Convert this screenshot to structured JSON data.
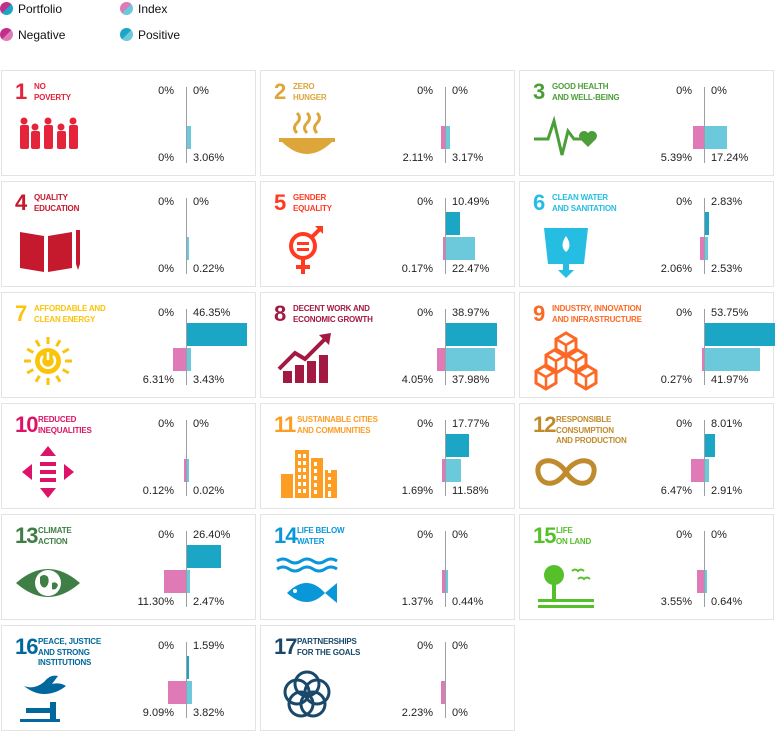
{
  "legend": {
    "portfolio": "Portfolio",
    "index": "Index",
    "negative": "Negative",
    "positive": "Positive"
  },
  "colors": {
    "positive_portfolio": "#1aa6c4",
    "positive_index": "#6cc9db",
    "negative_portfolio": "#c0308b",
    "negative_index": "#e07ab6"
  },
  "cards": [
    {
      "num": "1",
      "title": "NO POVERTY",
      "lines": [
        "NO",
        "POVERTY"
      ],
      "color": "#e5243b",
      "icon": "family-icon",
      "pos_top": "0%",
      "pos_bottom": "3.06%",
      "neg_top": "0%",
      "neg_bottom": "0%"
    },
    {
      "num": "2",
      "title": "ZERO HUNGER",
      "lines": [
        "ZERO",
        "HUNGER"
      ],
      "color": "#dda63a",
      "icon": "bowl-icon",
      "pos_top": "0%",
      "pos_bottom": "3.17%",
      "neg_top": "0%",
      "neg_bottom": "2.11%"
    },
    {
      "num": "3",
      "title": "GOOD HEALTH AND WELL-BEING",
      "lines": [
        "GOOD HEALTH",
        "AND WELL-BEING"
      ],
      "color": "#4c9f38",
      "icon": "heartbeat-icon",
      "pos_top": "0%",
      "pos_bottom": "17.24%",
      "neg_top": "0%",
      "neg_bottom": "5.39%"
    },
    {
      "num": "4",
      "title": "QUALITY EDUCATION",
      "lines": [
        "QUALITY",
        "EDUCATION"
      ],
      "color": "#c5192d",
      "icon": "book-icon",
      "pos_top": "0%",
      "pos_bottom": "0.22%",
      "neg_top": "0%",
      "neg_bottom": "0%"
    },
    {
      "num": "5",
      "title": "GENDER EQUALITY",
      "lines": [
        "GENDER",
        "EQUALITY"
      ],
      "color": "#ff3a21",
      "icon": "gender-icon",
      "pos_top": "10.49%",
      "pos_bottom": "22.47%",
      "neg_top": "0%",
      "neg_bottom": "0.17%"
    },
    {
      "num": "6",
      "title": "CLEAN WATER AND SANITATION",
      "lines": [
        "CLEAN WATER",
        "AND SANITATION"
      ],
      "color": "#26bde2",
      "icon": "water-glass-icon",
      "pos_top": "2.83%",
      "pos_bottom": "2.53%",
      "neg_top": "0%",
      "neg_bottom": "2.06%"
    },
    {
      "num": "7",
      "title": "AFFORDABLE AND CLEAN ENERGY",
      "lines": [
        "AFFORDABLE AND",
        "CLEAN ENERGY"
      ],
      "color": "#fcc30b",
      "icon": "sun-power-icon",
      "pos_top": "46.35%",
      "pos_bottom": "3.43%",
      "neg_top": "0%",
      "neg_bottom": "6.31%"
    },
    {
      "num": "8",
      "title": "DECENT WORK AND ECONOMIC GROWTH",
      "lines": [
        "DECENT WORK AND",
        "ECONOMIC GROWTH"
      ],
      "color": "#a21942",
      "icon": "growth-chart-icon",
      "pos_top": "38.97%",
      "pos_bottom": "37.98%",
      "neg_top": "0%",
      "neg_bottom": "4.05%"
    },
    {
      "num": "9",
      "title": "INDUSTRY, INNOVATION AND INFRASTRUCTURE",
      "lines": [
        "INDUSTRY, INNOVATION",
        "AND INFRASTRUCTURE"
      ],
      "color": "#fd6925",
      "icon": "cubes-icon",
      "pos_top": "53.75%",
      "pos_bottom": "41.97%",
      "neg_top": "0%",
      "neg_bottom": "0.27%"
    },
    {
      "num": "10",
      "title": "REDUCED INEQUALITIES",
      "lines": [
        "REDUCED",
        "INEQUALITIES"
      ],
      "color": "#dd1367",
      "icon": "equality-arrows-icon",
      "pos_top": "0%",
      "pos_bottom": "0.02%",
      "neg_top": "0%",
      "neg_bottom": "0.12%"
    },
    {
      "num": "11",
      "title": "SUSTAINABLE CITIES AND COMMUNITIES",
      "lines": [
        "SUSTAINABLE CITIES",
        "AND COMMUNITIES"
      ],
      "color": "#fd9d24",
      "icon": "city-icon",
      "pos_top": "17.77%",
      "pos_bottom": "11.58%",
      "neg_top": "0%",
      "neg_bottom": "1.69%"
    },
    {
      "num": "12",
      "title": "RESPONSIBLE CONSUMPTION AND PRODUCTION",
      "lines": [
        "RESPONSIBLE",
        "CONSUMPTION",
        "AND PRODUCTION"
      ],
      "color": "#bf8b2e",
      "icon": "infinity-icon",
      "pos_top": "8.01%",
      "pos_bottom": "2.91%",
      "neg_top": "0%",
      "neg_bottom": "6.47%"
    },
    {
      "num": "13",
      "title": "CLIMATE ACTION",
      "lines": [
        "CLIMATE",
        "ACTION"
      ],
      "color": "#3f7e44",
      "icon": "eye-globe-icon",
      "pos_top": "26.40%",
      "pos_bottom": "2.47%",
      "neg_top": "0%",
      "neg_bottom": "11.30%"
    },
    {
      "num": "14",
      "title": "LIFE BELOW WATER",
      "lines": [
        "LIFE BELOW",
        "WATER"
      ],
      "color": "#0a97d9",
      "icon": "fish-icon",
      "pos_top": "0%",
      "pos_bottom": "0.44%",
      "neg_top": "0%",
      "neg_bottom": "1.37%"
    },
    {
      "num": "15",
      "title": "LIFE ON LAND",
      "lines": [
        "LIFE",
        "ON LAND"
      ],
      "color": "#56c02b",
      "icon": "tree-icon",
      "pos_top": "0%",
      "pos_bottom": "0.64%",
      "neg_top": "0%",
      "neg_bottom": "3.55%"
    },
    {
      "num": "16",
      "title": "PEACE, JUSTICE AND STRONG INSTITUTIONS",
      "lines": [
        "PEACE, JUSTICE",
        "AND STRONG",
        "INSTITUTIONS"
      ],
      "color": "#00689d",
      "icon": "dove-gavel-icon",
      "pos_top": "1.59%",
      "pos_bottom": "3.82%",
      "neg_top": "0%",
      "neg_bottom": "9.09%"
    },
    {
      "num": "17",
      "title": "PARTNERSHIPS FOR THE GOALS",
      "lines": [
        "PARTNERSHIPS",
        "FOR THE GOALS"
      ],
      "color": "#19486a",
      "icon": "rings-icon",
      "pos_top": "0%",
      "pos_bottom": "0%",
      "neg_top": "0%",
      "neg_bottom": "2.23%"
    }
  ],
  "chart_data": {
    "type": "bar",
    "categories": [
      "1",
      "2",
      "3",
      "4",
      "5",
      "6",
      "7",
      "8",
      "9",
      "10",
      "11",
      "12",
      "13",
      "14",
      "15",
      "16",
      "17"
    ],
    "series": [
      {
        "name": "Portfolio Positive",
        "values": [
          0,
          0,
          0,
          0,
          10.49,
          2.83,
          46.35,
          38.97,
          53.75,
          0,
          17.77,
          8.01,
          26.4,
          0,
          0,
          1.59,
          0
        ]
      },
      {
        "name": "Index Positive",
        "values": [
          3.06,
          3.17,
          17.24,
          0.22,
          22.47,
          2.53,
          3.43,
          37.98,
          41.97,
          0.02,
          11.58,
          2.91,
          2.47,
          0.44,
          0.64,
          3.82,
          0
        ]
      },
      {
        "name": "Portfolio Negative",
        "values": [
          0,
          0,
          0,
          0,
          0,
          0,
          0,
          0,
          0,
          0,
          0,
          0,
          0,
          0,
          0,
          0,
          0
        ]
      },
      {
        "name": "Index Negative",
        "values": [
          0,
          2.11,
          5.39,
          0,
          0.17,
          2.06,
          6.31,
          4.05,
          0.27,
          0.12,
          1.69,
          6.47,
          11.3,
          1.37,
          3.55,
          9.09,
          2.23
        ]
      }
    ]
  }
}
